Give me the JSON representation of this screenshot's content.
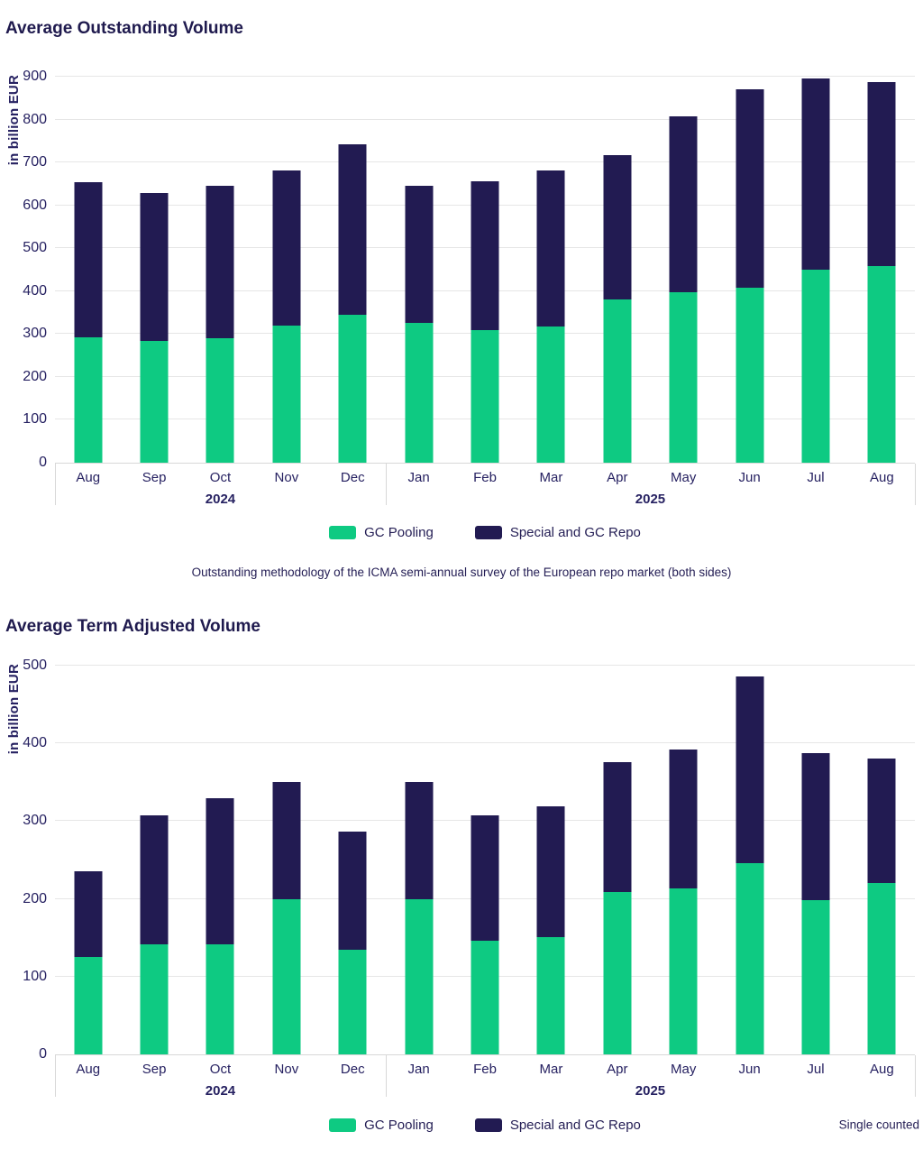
{
  "chart_data": [
    {
      "type": "bar",
      "stacked": true,
      "title": "Average Outstanding Volume",
      "ylabel": "in billion EUR",
      "categories": [
        "Aug",
        "Sep",
        "Oct",
        "Nov",
        "Dec",
        "Jan",
        "Feb",
        "Mar",
        "Apr",
        "May",
        "Jun",
        "Jul",
        "Aug"
      ],
      "year_groups": [
        {
          "label": "2024",
          "count": 5
        },
        {
          "label": "2025",
          "count": 8
        }
      ],
      "series": [
        {
          "name": "GC Pooling",
          "color": "#0eca82",
          "values": [
            292,
            283,
            291,
            319,
            345,
            327,
            309,
            318,
            380,
            398,
            407,
            451,
            458
          ]
        },
        {
          "name": "Special and GC Repo",
          "color": "#221b52",
          "values": [
            363,
            345,
            354,
            362,
            398,
            318,
            347,
            364,
            338,
            410,
            463,
            444,
            429
          ]
        }
      ],
      "ylim": [
        0,
        900
      ],
      "ytick_step": 100,
      "grid": "horizontal",
      "legend_position": "bottom",
      "caption": "Outstanding methodology of the ICMA semi-annual survey of the European repo market (both sides)",
      "note": ""
    },
    {
      "type": "bar",
      "stacked": true,
      "title": "Average Term Adjusted Volume",
      "ylabel": "in billion EUR",
      "categories": [
        "Aug",
        "Sep",
        "Oct",
        "Nov",
        "Dec",
        "Jan",
        "Feb",
        "Mar",
        "Apr",
        "May",
        "Jun",
        "Jul",
        "Aug"
      ],
      "year_groups": [
        {
          "label": "2024",
          "count": 5
        },
        {
          "label": "2025",
          "count": 8
        }
      ],
      "series": [
        {
          "name": "GC Pooling",
          "color": "#0eca82",
          "values": [
            125,
            141,
            141,
            199,
            135,
            199,
            146,
            151,
            209,
            214,
            246,
            198,
            220
          ]
        },
        {
          "name": "Special and GC Repo",
          "color": "#221b52",
          "values": [
            110,
            167,
            189,
            151,
            152,
            151,
            162,
            168,
            167,
            178,
            240,
            189,
            161
          ]
        }
      ],
      "ylim": [
        0,
        500
      ],
      "ytick_step": 100,
      "grid": "horizontal",
      "legend_position": "bottom",
      "caption": "",
      "note": "Single counted"
    }
  ]
}
